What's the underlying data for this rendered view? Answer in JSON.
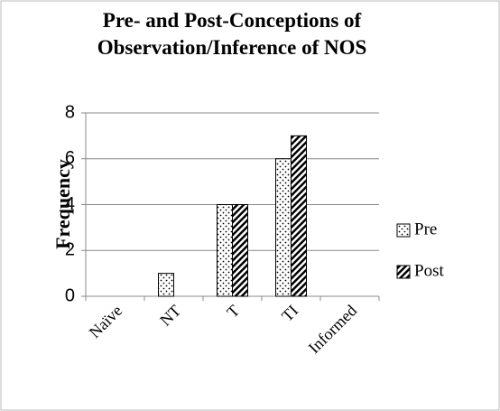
{
  "chart_data": {
    "type": "bar",
    "title": "Pre- and Post-Conceptions of Observation/Inference of NOS",
    "y_label": "Frequency",
    "categories": [
      "Naïve",
      "NT",
      "T",
      "TI",
      "Informed"
    ],
    "series": [
      {
        "name": "Pre",
        "color": "#000000",
        "pattern": "dots",
        "values": [
          0,
          1,
          4,
          6,
          0
        ]
      },
      {
        "name": "Post",
        "color": "#000000",
        "pattern": "diagonal",
        "values": [
          0,
          0,
          4,
          7,
          0
        ]
      }
    ],
    "ylim": [
      0,
      8
    ],
    "yticks": [
      0,
      2,
      4,
      6,
      8
    ],
    "grid": true,
    "legend": "right"
  }
}
